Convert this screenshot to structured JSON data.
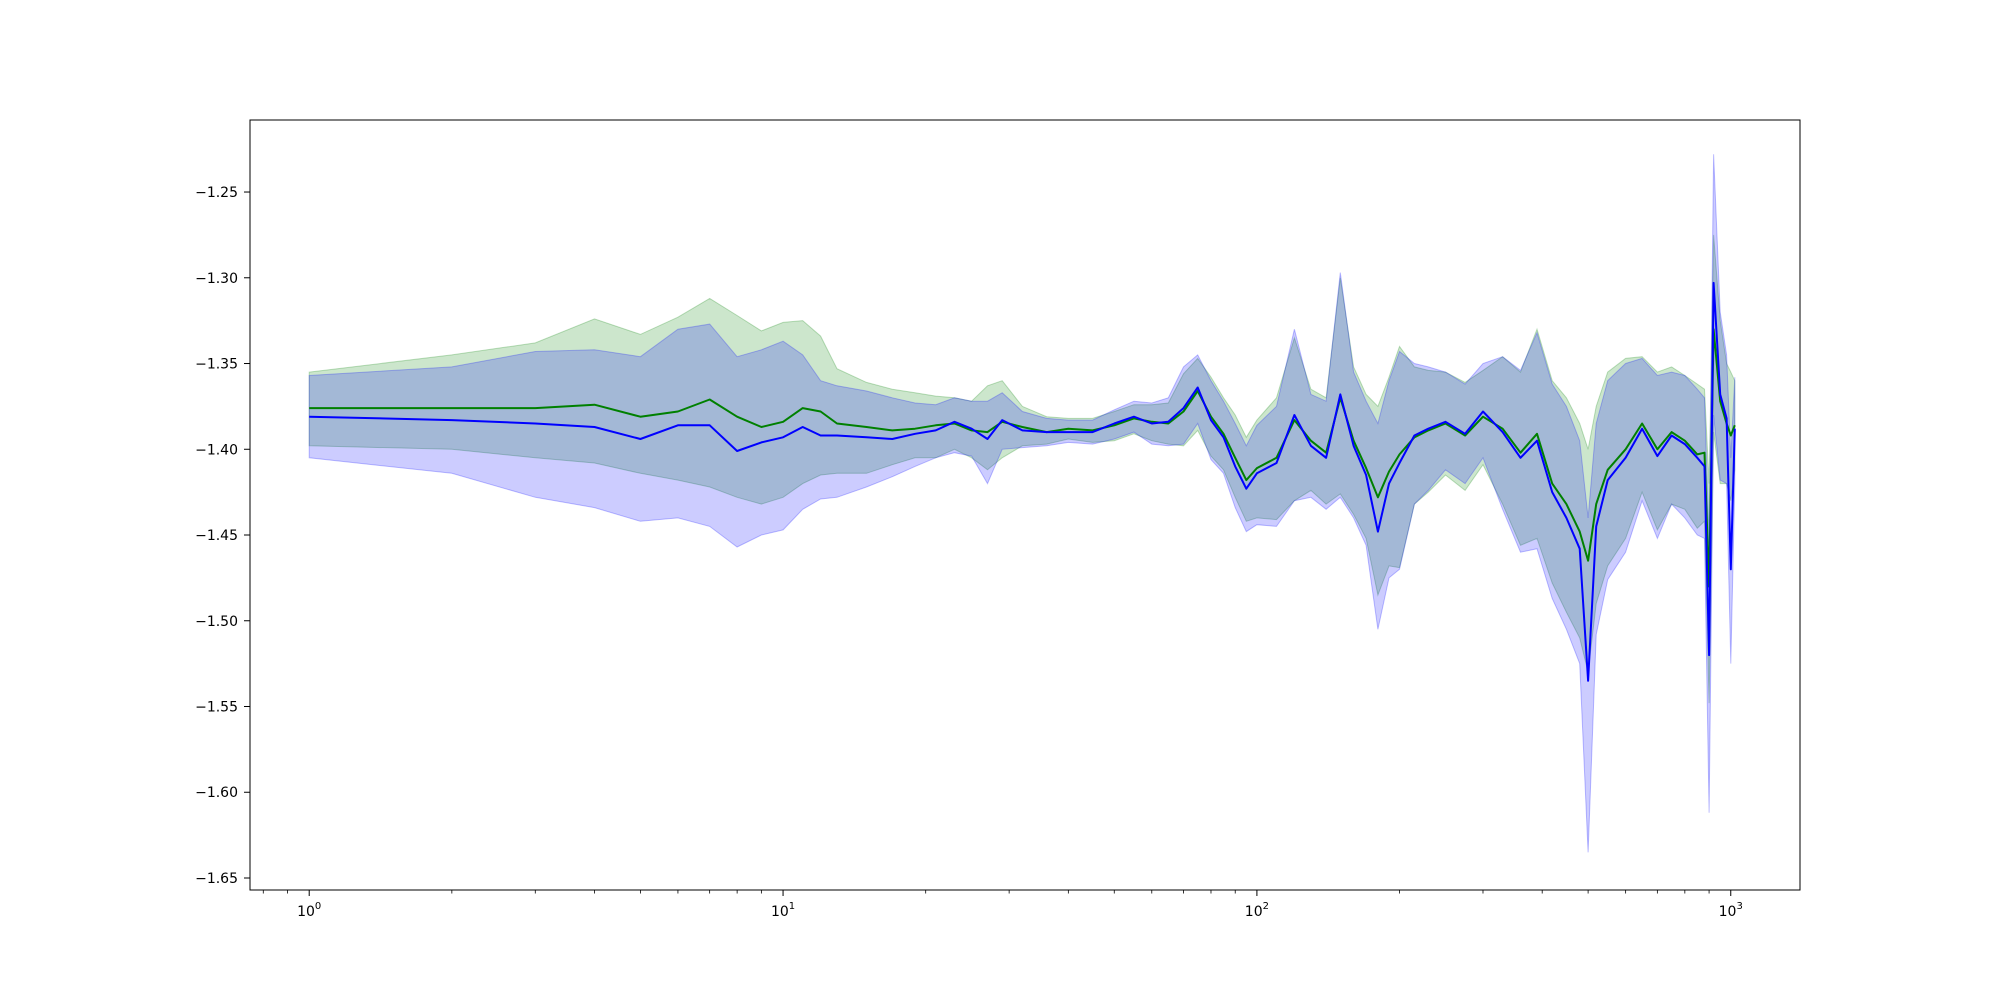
{
  "chart_data": {
    "type": "line",
    "title": "",
    "xlabel": "",
    "ylabel": "",
    "xscale": "log",
    "xlim": [
      0.75,
      1400
    ],
    "ylim": [
      -1.657,
      -1.208
    ],
    "grid": false,
    "legend": "none",
    "x_ticks": [
      {
        "value": 1,
        "base": "10",
        "exp": "0"
      },
      {
        "value": 10,
        "base": "10",
        "exp": "1"
      },
      {
        "value": 100,
        "base": "10",
        "exp": "2"
      },
      {
        "value": 1000,
        "base": "10",
        "exp": "3"
      }
    ],
    "y_ticks": [
      {
        "value": -1.25,
        "label": "−1.25"
      },
      {
        "value": -1.3,
        "label": "−1.30"
      },
      {
        "value": -1.35,
        "label": "−1.35"
      },
      {
        "value": -1.4,
        "label": "−1.40"
      },
      {
        "value": -1.45,
        "label": "−1.45"
      },
      {
        "value": -1.5,
        "label": "−1.50"
      },
      {
        "value": -1.55,
        "label": "−1.55"
      },
      {
        "value": -1.6,
        "label": "−1.60"
      },
      {
        "value": -1.65,
        "label": "−1.65"
      }
    ],
    "series": [
      {
        "color": "#008000",
        "band_color": "#008000",
        "band_opacity": 0.2,
        "points": [
          [
            1,
            -1.376,
            -1.355,
            -1.398
          ],
          [
            2,
            -1.376,
            -1.345,
            -1.4
          ],
          [
            3,
            -1.376,
            -1.338,
            -1.405
          ],
          [
            4,
            -1.374,
            -1.324,
            -1.408
          ],
          [
            5,
            -1.381,
            -1.333,
            -1.414
          ],
          [
            6,
            -1.378,
            -1.323,
            -1.418
          ],
          [
            7,
            -1.371,
            -1.312,
            -1.422
          ],
          [
            8,
            -1.381,
            -1.322,
            -1.428
          ],
          [
            9,
            -1.387,
            -1.331,
            -1.432
          ],
          [
            10,
            -1.384,
            -1.326,
            -1.428
          ],
          [
            11,
            -1.376,
            -1.325,
            -1.42
          ],
          [
            12,
            -1.378,
            -1.334,
            -1.415
          ],
          [
            13,
            -1.385,
            -1.353,
            -1.414
          ],
          [
            15,
            -1.387,
            -1.361,
            -1.414
          ],
          [
            17,
            -1.389,
            -1.365,
            -1.409
          ],
          [
            19,
            -1.388,
            -1.367,
            -1.405
          ],
          [
            21,
            -1.386,
            -1.369,
            -1.405
          ],
          [
            23,
            -1.385,
            -1.37,
            -1.4
          ],
          [
            25,
            -1.389,
            -1.372,
            -1.405
          ],
          [
            27,
            -1.39,
            -1.363,
            -1.412
          ],
          [
            29,
            -1.384,
            -1.36,
            -1.405
          ],
          [
            32,
            -1.387,
            -1.375,
            -1.398
          ],
          [
            36,
            -1.39,
            -1.381,
            -1.397
          ],
          [
            40,
            -1.388,
            -1.382,
            -1.394
          ],
          [
            45,
            -1.389,
            -1.382,
            -1.396
          ],
          [
            50,
            -1.386,
            -1.378,
            -1.395
          ],
          [
            55,
            -1.382,
            -1.374,
            -1.391
          ],
          [
            60,
            -1.384,
            -1.374,
            -1.395
          ],
          [
            65,
            -1.385,
            -1.373,
            -1.397
          ],
          [
            70,
            -1.378,
            -1.356,
            -1.398
          ],
          [
            75,
            -1.366,
            -1.347,
            -1.389
          ],
          [
            80,
            -1.381,
            -1.358,
            -1.404
          ],
          [
            85,
            -1.391,
            -1.37,
            -1.412
          ],
          [
            90,
            -1.405,
            -1.38,
            -1.428
          ],
          [
            95,
            -1.418,
            -1.393,
            -1.442
          ],
          [
            100,
            -1.411,
            -1.383,
            -1.44
          ],
          [
            110,
            -1.405,
            -1.37,
            -1.441
          ],
          [
            120,
            -1.383,
            -1.335,
            -1.43
          ],
          [
            130,
            -1.395,
            -1.365,
            -1.424
          ],
          [
            140,
            -1.402,
            -1.37,
            -1.432
          ],
          [
            150,
            -1.37,
            -1.3,
            -1.426
          ],
          [
            160,
            -1.395,
            -1.352,
            -1.438
          ],
          [
            170,
            -1.411,
            -1.368,
            -1.452
          ],
          [
            180,
            -1.428,
            -1.375,
            -1.485
          ],
          [
            190,
            -1.413,
            -1.358,
            -1.468
          ],
          [
            200,
            -1.403,
            -1.34,
            -1.469
          ],
          [
            215,
            -1.393,
            -1.352,
            -1.432
          ],
          [
            230,
            -1.389,
            -1.354,
            -1.425
          ],
          [
            250,
            -1.385,
            -1.355,
            -1.415
          ],
          [
            275,
            -1.392,
            -1.361,
            -1.424
          ],
          [
            300,
            -1.381,
            -1.354,
            -1.409
          ],
          [
            330,
            -1.388,
            -1.346,
            -1.432
          ],
          [
            360,
            -1.402,
            -1.355,
            -1.456
          ],
          [
            390,
            -1.391,
            -1.33,
            -1.452
          ],
          [
            420,
            -1.42,
            -1.36,
            -1.478
          ],
          [
            450,
            -1.432,
            -1.37,
            -1.495
          ],
          [
            480,
            -1.448,
            -1.385,
            -1.51
          ],
          [
            500,
            -1.465,
            -1.4,
            -1.53
          ],
          [
            520,
            -1.432,
            -1.375,
            -1.49
          ],
          [
            550,
            -1.412,
            -1.355,
            -1.468
          ],
          [
            600,
            -1.4,
            -1.347,
            -1.452
          ],
          [
            650,
            -1.385,
            -1.346,
            -1.425
          ],
          [
            700,
            -1.4,
            -1.355,
            -1.447
          ],
          [
            750,
            -1.39,
            -1.352,
            -1.432
          ],
          [
            800,
            -1.395,
            -1.357,
            -1.435
          ],
          [
            850,
            -1.403,
            -1.362,
            -1.446
          ],
          [
            880,
            -1.402,
            -1.365,
            -1.442
          ],
          [
            900,
            -1.48,
            -1.42,
            -1.548
          ],
          [
            920,
            -1.33,
            -1.275,
            -1.39
          ],
          [
            950,
            -1.372,
            -1.325,
            -1.42
          ],
          [
            980,
            -1.385,
            -1.35,
            -1.42
          ],
          [
            1000,
            -1.392,
            -1.355,
            -1.43
          ],
          [
            1020,
            -1.386,
            -1.36,
            -1.412
          ]
        ]
      },
      {
        "color": "#0000ff",
        "band_color": "#0000ff",
        "band_opacity": 0.2,
        "points": [
          [
            1,
            -1.381,
            -1.357,
            -1.405
          ],
          [
            2,
            -1.383,
            -1.352,
            -1.414
          ],
          [
            3,
            -1.385,
            -1.343,
            -1.428
          ],
          [
            4,
            -1.387,
            -1.342,
            -1.434
          ],
          [
            5,
            -1.394,
            -1.346,
            -1.442
          ],
          [
            6,
            -1.386,
            -1.33,
            -1.44
          ],
          [
            7,
            -1.386,
            -1.327,
            -1.445
          ],
          [
            8,
            -1.401,
            -1.346,
            -1.457
          ],
          [
            9,
            -1.396,
            -1.342,
            -1.45
          ],
          [
            10,
            -1.393,
            -1.337,
            -1.447
          ],
          [
            11,
            -1.387,
            -1.345,
            -1.435
          ],
          [
            12,
            -1.392,
            -1.36,
            -1.429
          ],
          [
            13,
            -1.392,
            -1.363,
            -1.428
          ],
          [
            15,
            -1.393,
            -1.366,
            -1.422
          ],
          [
            17,
            -1.394,
            -1.37,
            -1.416
          ],
          [
            19,
            -1.391,
            -1.373,
            -1.41
          ],
          [
            21,
            -1.389,
            -1.374,
            -1.405
          ],
          [
            23,
            -1.384,
            -1.37,
            -1.402
          ],
          [
            25,
            -1.388,
            -1.372,
            -1.404
          ],
          [
            27,
            -1.394,
            -1.372,
            -1.42
          ],
          [
            29,
            -1.383,
            -1.367,
            -1.4
          ],
          [
            32,
            -1.389,
            -1.378,
            -1.399
          ],
          [
            36,
            -1.39,
            -1.382,
            -1.398
          ],
          [
            40,
            -1.39,
            -1.383,
            -1.396
          ],
          [
            45,
            -1.39,
            -1.383,
            -1.397
          ],
          [
            50,
            -1.385,
            -1.377,
            -1.394
          ],
          [
            55,
            -1.381,
            -1.372,
            -1.39
          ],
          [
            60,
            -1.385,
            -1.373,
            -1.397
          ],
          [
            65,
            -1.384,
            -1.37,
            -1.398
          ],
          [
            70,
            -1.376,
            -1.352,
            -1.397
          ],
          [
            75,
            -1.364,
            -1.345,
            -1.385
          ],
          [
            80,
            -1.383,
            -1.36,
            -1.406
          ],
          [
            85,
            -1.393,
            -1.372,
            -1.414
          ],
          [
            90,
            -1.41,
            -1.385,
            -1.434
          ],
          [
            95,
            -1.423,
            -1.398,
            -1.448
          ],
          [
            100,
            -1.414,
            -1.386,
            -1.444
          ],
          [
            110,
            -1.408,
            -1.375,
            -1.445
          ],
          [
            120,
            -1.38,
            -1.33,
            -1.43
          ],
          [
            130,
            -1.398,
            -1.368,
            -1.428
          ],
          [
            140,
            -1.405,
            -1.372,
            -1.435
          ],
          [
            150,
            -1.368,
            -1.297,
            -1.428
          ],
          [
            160,
            -1.398,
            -1.355,
            -1.44
          ],
          [
            170,
            -1.415,
            -1.372,
            -1.456
          ],
          [
            180,
            -1.448,
            -1.385,
            -1.505
          ],
          [
            190,
            -1.42,
            -1.36,
            -1.475
          ],
          [
            200,
            -1.408,
            -1.343,
            -1.47
          ],
          [
            215,
            -1.392,
            -1.35,
            -1.432
          ],
          [
            230,
            -1.388,
            -1.352,
            -1.424
          ],
          [
            250,
            -1.384,
            -1.355,
            -1.412
          ],
          [
            275,
            -1.391,
            -1.362,
            -1.42
          ],
          [
            300,
            -1.378,
            -1.35,
            -1.405
          ],
          [
            330,
            -1.39,
            -1.346,
            -1.435
          ],
          [
            360,
            -1.405,
            -1.354,
            -1.46
          ],
          [
            390,
            -1.395,
            -1.332,
            -1.458
          ],
          [
            420,
            -1.425,
            -1.362,
            -1.487
          ],
          [
            450,
            -1.44,
            -1.375,
            -1.505
          ],
          [
            480,
            -1.458,
            -1.395,
            -1.525
          ],
          [
            500,
            -1.535,
            -1.44,
            -1.635
          ],
          [
            520,
            -1.445,
            -1.385,
            -1.508
          ],
          [
            550,
            -1.418,
            -1.36,
            -1.476
          ],
          [
            600,
            -1.405,
            -1.35,
            -1.46
          ],
          [
            650,
            -1.388,
            -1.347,
            -1.43
          ],
          [
            700,
            -1.404,
            -1.357,
            -1.452
          ],
          [
            750,
            -1.392,
            -1.355,
            -1.432
          ],
          [
            800,
            -1.397,
            -1.357,
            -1.44
          ],
          [
            850,
            -1.405,
            -1.365,
            -1.45
          ],
          [
            880,
            -1.41,
            -1.37,
            -1.452
          ],
          [
            900,
            -1.52,
            -1.455,
            -1.612
          ],
          [
            920,
            -1.303,
            -1.228,
            -1.38
          ],
          [
            950,
            -1.368,
            -1.32,
            -1.418
          ],
          [
            980,
            -1.382,
            -1.345,
            -1.42
          ],
          [
            1000,
            -1.47,
            -1.405,
            -1.525
          ],
          [
            1020,
            -1.388,
            -1.358,
            -1.42
          ]
        ]
      }
    ]
  }
}
